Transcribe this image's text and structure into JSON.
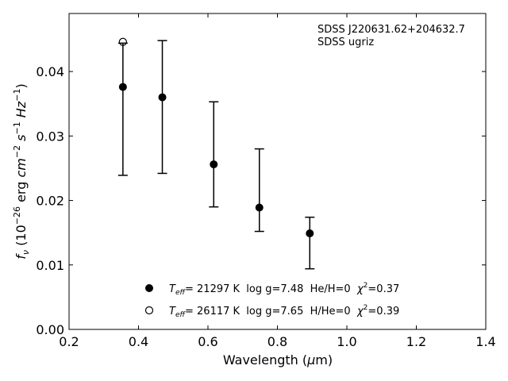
{
  "chart_data": {
    "type": "scatter",
    "annotations": [
      "SDSS J220631.62+204632.7",
      "SDSS ugriz"
    ],
    "xlabel": {
      "main": "Wavelength (",
      "mu": "μ",
      "unit": "m)"
    },
    "ylabel": {
      "f": "f",
      "nu": "ν",
      "open": " (10",
      "exp26": "−26",
      "erg": " erg ",
      "cm": "cm",
      "exp2": "−2",
      "s": " s",
      "exp1a": "−1",
      "hz": " Hz",
      "exp1b": "−1",
      "close": ")"
    },
    "xlim": [
      0.2,
      1.4
    ],
    "ylim": [
      0.0,
      0.049
    ],
    "xticks": [
      0.2,
      0.4,
      0.6,
      0.8,
      1.0,
      1.2,
      1.4
    ],
    "xtick_labels": [
      "0.2",
      "0.4",
      "0.6",
      "0.8",
      "1.0",
      "1.2",
      "1.4"
    ],
    "yticks": [
      0.0,
      0.01,
      0.02,
      0.03,
      0.04
    ],
    "ytick_labels": [
      "0.00",
      "0.01",
      "0.02",
      "0.03",
      "0.04"
    ],
    "grid": false,
    "legend_position": "bottom-center",
    "series": [
      {
        "name": "observed",
        "marker": "error-bar",
        "x": [
          0.3551,
          0.4686,
          0.6166,
          0.748,
          0.8932
        ],
        "y": [
          0.0376,
          0.036,
          0.0256,
          0.0189,
          0.0149
        ],
        "yerr_low": [
          0.0239,
          0.0242,
          0.019,
          0.0152,
          0.0094
        ],
        "yerr_high": [
          0.0444,
          0.0448,
          0.0353,
          0.028,
          0.0174
        ]
      },
      {
        "name": "model-dA",
        "marker": "filled-circle",
        "x": [
          0.3551,
          0.4686,
          0.6166,
          0.748,
          0.8932
        ],
        "y": [
          0.0376,
          0.036,
          0.0256,
          0.0189,
          0.0149
        ]
      },
      {
        "name": "model-dB",
        "marker": "open-circle",
        "x": [
          0.3551
        ],
        "y": [
          0.0446
        ]
      }
    ],
    "legend": [
      {
        "marker": "filled-circle",
        "t": "T",
        "eff": "eff",
        "label": "= 21297 K  log g=7.48  He/H=0  ",
        "chi": "χ",
        "chi_exp": "2",
        "chi_val": "=0.37"
      },
      {
        "marker": "open-circle",
        "t": "T",
        "eff": "eff",
        "label": "= 26117 K  log g=7.65  H/He=0  ",
        "chi": "χ",
        "chi_exp": "2",
        "chi_val": "=0.39"
      }
    ],
    "colors": {
      "marker": "#000000",
      "axes": "#000000",
      "background": "#ffffff"
    }
  }
}
